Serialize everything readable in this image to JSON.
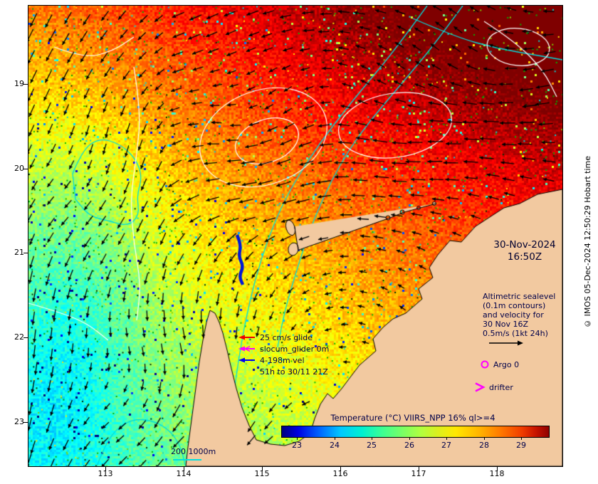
{
  "annotations": {
    "date_line1": "30-Nov-2024",
    "date_line2": "16:50Z",
    "altimetric_lines": [
      "Altimetric sealevel",
      "(0.1m contours)",
      "and velocity for",
      "30 Nov 16Z",
      "0.5m/s (1kt 24h)"
    ],
    "argo_label": "Argo 0",
    "drifter_label": "drifter"
  },
  "glider_legend": {
    "rows": [
      {
        "label": "25 cm/s glide",
        "color": "#ee0000"
      },
      {
        "label": "slocum_glider 0m",
        "color": "#ff00ff"
      },
      {
        "label": "4-198m vel",
        "color": "#0000ee"
      }
    ],
    "footnote": "51h to 30/11 21Z"
  },
  "colorbar": {
    "title": "Temperature (°C) VIIRS_NPP 16% ql>=4",
    "ticks": [
      "23",
      "24",
      "25",
      "26",
      "27",
      "28",
      "29"
    ]
  },
  "scalebar": {
    "label": "200 1000m"
  },
  "axes": {
    "x_ticks": [
      "113",
      "114",
      "115",
      "116",
      "117",
      "118"
    ],
    "y_ticks": [
      "19",
      "20",
      "21",
      "22",
      "23"
    ]
  },
  "copyright": "© IMOS 05-Dec-2024 12:50:29 Hobart time",
  "colors": {
    "marker_magenta": "#ff00ff",
    "scale_arrow": "#000000"
  }
}
